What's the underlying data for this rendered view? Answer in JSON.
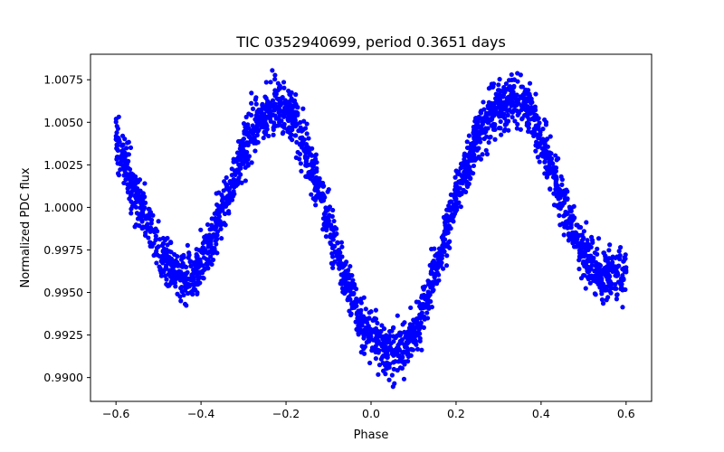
{
  "chart_data": {
    "type": "scatter",
    "title": "TIC 0352940699, period 0.3651 days",
    "xlabel": "Phase",
    "ylabel": "Normalized PDC flux",
    "xlim": [
      -0.66,
      0.66
    ],
    "ylim": [
      0.9886,
      1.009
    ],
    "xticks": [
      -0.6,
      -0.4,
      -0.2,
      0.0,
      0.2,
      0.4,
      0.6
    ],
    "xtick_labels": [
      "−0.6",
      "−0.4",
      "−0.2",
      "0.0",
      "0.2",
      "0.4",
      "0.6"
    ],
    "yticks": [
      0.99,
      0.9925,
      0.995,
      0.9975,
      1.0,
      1.0025,
      1.005,
      1.0075
    ],
    "ytick_labels": [
      "0.9900",
      "0.9925",
      "0.9950",
      "0.9975",
      "1.0000",
      "1.0025",
      "1.0050",
      "1.0075"
    ],
    "grid": false,
    "legend": "none",
    "series": [
      {
        "name": "PDC flux",
        "color": "#0000ff",
        "marker": "circle",
        "x": [
          -0.6,
          -0.58,
          -0.56,
          -0.54,
          -0.52,
          -0.5,
          -0.48,
          -0.46,
          -0.44,
          -0.42,
          -0.4,
          -0.38,
          -0.36,
          -0.34,
          -0.32,
          -0.3,
          -0.28,
          -0.26,
          -0.24,
          -0.22,
          -0.2,
          -0.18,
          -0.16,
          -0.14,
          -0.12,
          -0.1,
          -0.08,
          -0.06,
          -0.04,
          -0.02,
          0.0,
          0.02,
          0.04,
          0.06,
          0.08,
          0.1,
          0.12,
          0.14,
          0.16,
          0.18,
          0.2,
          0.22,
          0.24,
          0.26,
          0.28,
          0.3,
          0.32,
          0.34,
          0.36,
          0.38,
          0.4,
          0.42,
          0.44,
          0.46,
          0.48,
          0.5,
          0.52,
          0.54,
          0.56,
          0.58,
          0.6
        ],
        "y": [
          1.004,
          1.0025,
          1.0012,
          1.0,
          0.9988,
          0.9977,
          0.9968,
          0.9962,
          0.9958,
          0.996,
          0.9966,
          0.9977,
          0.999,
          1.0005,
          1.002,
          1.0033,
          1.0044,
          1.0052,
          1.0057,
          1.0059,
          1.0057,
          1.005,
          1.0039,
          1.0025,
          1.0008,
          0.999,
          0.9973,
          0.9957,
          0.9944,
          0.9934,
          0.9926,
          0.992,
          0.9916,
          0.9915,
          0.9918,
          0.9926,
          0.9938,
          0.9953,
          0.997,
          0.9988,
          1.0005,
          1.0021,
          1.0034,
          1.0046,
          1.0055,
          1.0061,
          1.0064,
          1.0064,
          1.006,
          1.0052,
          1.004,
          1.0026,
          1.0011,
          0.9996,
          0.9983,
          0.9973,
          0.9966,
          0.9961,
          0.996,
          0.996,
          0.9962
        ]
      }
    ]
  }
}
